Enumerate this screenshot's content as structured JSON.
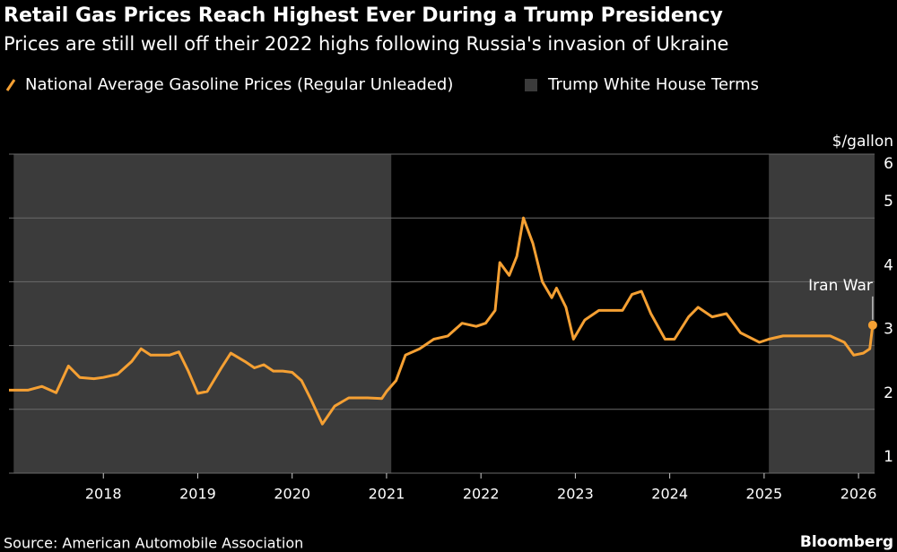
{
  "chart_data": {
    "type": "line",
    "title": "Retail Gas Prices Reach Highest Ever During a Trump Presidency",
    "subtitle": "Prices are still well off their 2022 highs following Russia's invasion of Ukraine",
    "y_axis_label": "$/gallon",
    "source": "Source: American Automobile Association",
    "brand": "Bloomberg",
    "annotation": "Iran War",
    "x": [
      2017.0,
      2017.2,
      2017.35,
      2017.5,
      2017.63,
      2017.75,
      2017.9,
      2018.0,
      2018.15,
      2018.3,
      2018.4,
      2018.5,
      2018.7,
      2018.8,
      2018.9,
      2019.0,
      2019.1,
      2019.25,
      2019.35,
      2019.5,
      2019.6,
      2019.7,
      2019.8,
      2019.9,
      2020.0,
      2020.1,
      2020.2,
      2020.32,
      2020.45,
      2020.6,
      2020.8,
      2020.95,
      2021.0,
      2021.1,
      2021.2,
      2021.35,
      2021.5,
      2021.65,
      2021.8,
      2021.95,
      2022.05,
      2022.15,
      2022.2,
      2022.3,
      2022.38,
      2022.45,
      2022.55,
      2022.65,
      2022.75,
      2022.8,
      2022.9,
      2022.98,
      2023.1,
      2023.25,
      2023.35,
      2023.5,
      2023.6,
      2023.7,
      2023.8,
      2023.95,
      2024.05,
      2024.2,
      2024.3,
      2024.45,
      2024.6,
      2024.75,
      2024.95,
      2025.05,
      2025.2,
      2025.35,
      2025.5,
      2025.7,
      2025.85,
      2025.95,
      2026.05,
      2026.12,
      2026.15
    ],
    "series": [
      {
        "name": "National Average Gasoline Prices (Regular Unleaded)",
        "color": "#f5a033",
        "values": [
          2.3,
          2.3,
          2.36,
          2.26,
          2.68,
          2.5,
          2.48,
          2.5,
          2.55,
          2.75,
          2.95,
          2.85,
          2.85,
          2.9,
          2.6,
          2.25,
          2.28,
          2.65,
          2.88,
          2.75,
          2.65,
          2.7,
          2.6,
          2.6,
          2.58,
          2.45,
          2.15,
          1.77,
          2.05,
          2.18,
          2.18,
          2.17,
          2.28,
          2.45,
          2.85,
          2.95,
          3.1,
          3.15,
          3.35,
          3.3,
          3.35,
          3.55,
          4.3,
          4.1,
          4.4,
          5.0,
          4.6,
          4.0,
          3.75,
          3.9,
          3.6,
          3.1,
          3.4,
          3.55,
          3.55,
          3.55,
          3.8,
          3.85,
          3.5,
          3.1,
          3.1,
          3.45,
          3.6,
          3.45,
          3.5,
          3.2,
          3.05,
          3.1,
          3.15,
          3.15,
          3.15,
          3.15,
          3.05,
          2.85,
          2.88,
          2.95,
          3.32
        ]
      }
    ],
    "shading": {
      "name": "Trump White House Terms",
      "color": "#3b3b3b",
      "ranges": [
        [
          2017.05,
          2021.05
        ],
        [
          2025.05,
          2026.17
        ]
      ]
    },
    "xlim": [
      2017.0,
      2026.17
    ],
    "xticks": [
      2018,
      2019,
      2020,
      2021,
      2022,
      2023,
      2024,
      2025,
      2026
    ],
    "ylim": [
      1,
      6
    ],
    "yticks": [
      1,
      2,
      3,
      4,
      5,
      6
    ],
    "grid": true
  }
}
